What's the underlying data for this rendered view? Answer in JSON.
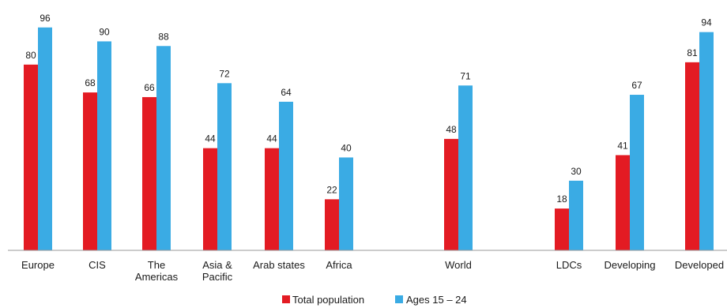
{
  "chart_data": {
    "type": "bar",
    "categories": [
      [
        "Europe"
      ],
      [
        "CIS"
      ],
      [
        "The",
        "Americas"
      ],
      [
        "Asia &",
        "Pacific"
      ],
      [
        "Arab states"
      ],
      [
        "Africa"
      ],
      [
        "World"
      ],
      [
        "LDCs"
      ],
      [
        "Developing"
      ],
      [
        "Developed"
      ]
    ],
    "series": [
      {
        "name": "Total population",
        "color": "#e31b23",
        "values": [
          80,
          68,
          66,
          44,
          44,
          22,
          48,
          18,
          41,
          81
        ]
      },
      {
        "name": "Ages 15 – 24",
        "color": "#3aabe4",
        "values": [
          96,
          90,
          88,
          72,
          64,
          40,
          71,
          30,
          67,
          94
        ]
      }
    ],
    "ylim": [
      0,
      100
    ],
    "grid": false,
    "legend_position": "bottom-center"
  }
}
